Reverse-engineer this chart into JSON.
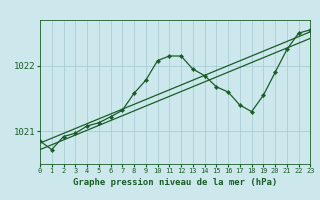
{
  "title": "Graphe pression niveau de la mer (hPa)",
  "bg_color": "#cce8ec",
  "grid_color": "#aacdd4",
  "line_color": "#1a5c28",
  "xlim": [
    0,
    23
  ],
  "ylim": [
    1020.5,
    1022.7
  ],
  "yticks": [
    1021,
    1022
  ],
  "xticks": [
    0,
    1,
    2,
    3,
    4,
    5,
    6,
    7,
    8,
    9,
    10,
    11,
    12,
    13,
    14,
    15,
    16,
    17,
    18,
    19,
    20,
    21,
    22,
    23
  ],
  "series1_x": [
    0,
    1,
    2,
    3,
    4,
    5,
    6,
    7,
    8,
    9,
    10,
    11,
    12,
    13,
    14,
    15,
    16,
    17,
    18,
    19,
    20,
    21,
    22,
    23
  ],
  "series1_y": [
    1020.85,
    1020.72,
    1020.92,
    1020.97,
    1021.08,
    1021.13,
    1021.22,
    1021.32,
    1021.58,
    1021.78,
    1022.08,
    1022.15,
    1022.15,
    1021.95,
    1021.85,
    1021.68,
    1021.6,
    1021.4,
    1021.3,
    1021.55,
    1021.9,
    1022.25,
    1022.5,
    1022.55
  ],
  "series2_x": [
    0,
    23
  ],
  "series2_y": [
    1020.82,
    1022.52
  ],
  "series3_x": [
    0,
    23
  ],
  "series3_y": [
    1020.72,
    1022.42
  ],
  "xlabel_fontsize": 6.5,
  "ytick_fontsize": 6.5,
  "xtick_fontsize": 5.0
}
